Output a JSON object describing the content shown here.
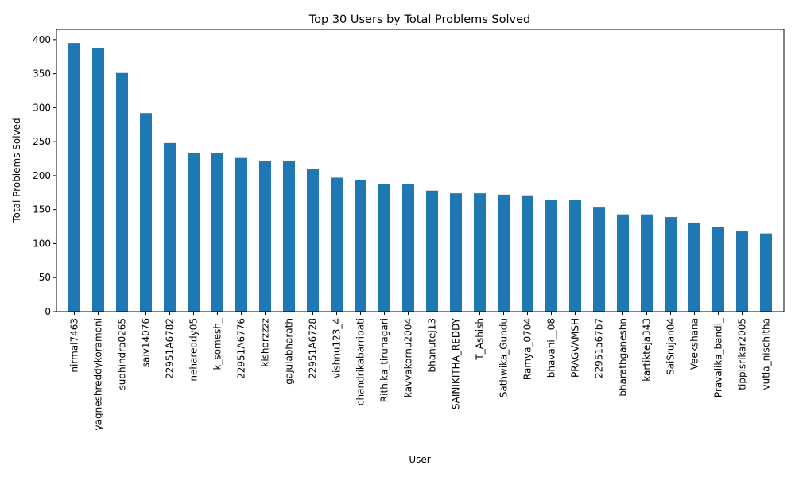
{
  "chart_data": {
    "type": "bar",
    "title": "Top 30 Users by Total Problems Solved",
    "xlabel": "User",
    "ylabel": "Total Problems Solved",
    "ylim": [
      0,
      415
    ],
    "yticks": [
      0,
      50,
      100,
      150,
      200,
      250,
      300,
      350,
      400
    ],
    "grid": false,
    "bar_color": "#1f77b4",
    "categories": [
      "nirmal7463",
      "yagneshreddykoramoni",
      "sudhindra0265",
      "saiv14076",
      "22951A6782",
      "nehareddy05",
      "k_somesh_",
      "22951A6776",
      "kishorzzzz",
      "gajulabharath",
      "22951A6728",
      "vishnu123_4",
      "chandrikabarripati",
      "Rithika_tirunagari",
      "kavyakornu2004",
      "bhanutej13",
      "SAINIKITHA_REDDY",
      "T_Ashish",
      "Sathwika_Gundu",
      "Ramya_0704",
      "bhavani__08",
      "PRAGVAMSH",
      "22951a67b7",
      "bharathganeshn",
      "kartikteja343",
      "SaiSrujan04",
      "Veekshana",
      "Pravalika_bandi_",
      "tippisrikar2005",
      "vutla_nischitha"
    ],
    "values": [
      395,
      387,
      351,
      292,
      248,
      233,
      233,
      226,
      222,
      222,
      210,
      197,
      193,
      188,
      187,
      178,
      174,
      174,
      172,
      171,
      164,
      164,
      153,
      143,
      143,
      139,
      131,
      124,
      118,
      115
    ]
  }
}
